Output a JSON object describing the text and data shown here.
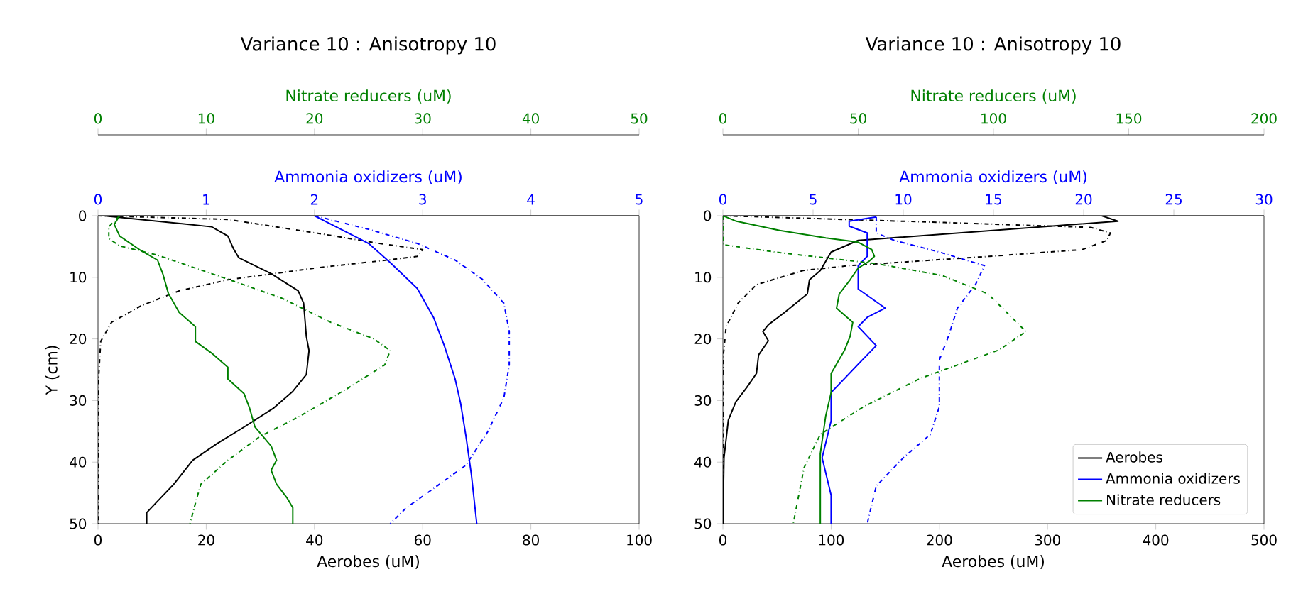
{
  "chart_data": [
    {
      "type": "line",
      "title": "Variance 10 : Anisotropy 10",
      "xlabel": "Aerobes (uM)",
      "ylabel": "Y (cm)",
      "x2label": "Ammonia oxidizers (uM)",
      "orientation": "horizontal",
      "xlim": [
        0,
        100
      ],
      "xticks": [
        0,
        20,
        40,
        60,
        80,
        100
      ],
      "x2lim": [
        0,
        5
      ],
      "x2ticks": [
        0,
        1,
        2,
        3,
        4,
        5
      ],
      "ylim": [
        50,
        0
      ],
      "yticks": [
        0,
        10,
        20,
        30,
        40,
        50
      ],
      "series": [
        {
          "color": "#000000",
          "line_style": "solid",
          "x": [
            0,
            1.8,
            3.3,
            5.3,
            6.8,
            9.4,
            12.2,
            14.2,
            19.6,
            21.9,
            25.8,
            28.5,
            31.2,
            34.3,
            37,
            39.7,
            43.6,
            45.9,
            48.2,
            50
          ],
          "values": [
            1,
            21,
            24,
            25,
            26,
            32,
            37,
            38,
            38.5,
            39,
            38.5,
            36,
            32.5,
            27,
            22,
            17.5,
            14,
            11.5,
            9,
            9
          ]
        },
        {
          "color": "#000000",
          "line_style": "dashdot",
          "x": [
            0,
            0.6,
            2.9,
            4.5,
            5.5,
            6.6,
            7.2,
            8.4,
            9.4,
            10.4,
            12.2,
            14.6,
            17.3,
            20.4,
            28.1,
            50
          ],
          "values": [
            0,
            24,
            41,
            52,
            60,
            59,
            53.5,
            41,
            32.5,
            24,
            15,
            8,
            2.5,
            0.5,
            0,
            0
          ]
        },
        {
          "color": "#0000ff",
          "line_style": "solid",
          "axis": "x2",
          "x": [
            0,
            1.8,
            4.5,
            7.6,
            11.8,
            16.5,
            21.1,
            26.5,
            30.4,
            35.8,
            42,
            50
          ],
          "values": [
            2.0,
            2.2,
            2.5,
            2.7,
            2.95,
            3.1,
            3.2,
            3.3,
            3.35,
            3.4,
            3.45,
            3.5
          ]
        },
        {
          "color": "#0000ff",
          "line_style": "dashdot",
          "axis": "x2",
          "x": [
            0,
            2.2,
            4.5,
            7.2,
            10.3,
            14.2,
            18.8,
            24.2,
            29.6,
            35.1,
            40.5,
            44.3,
            47.4,
            50
          ],
          "values": [
            2.0,
            2.5,
            2.95,
            3.3,
            3.55,
            3.75,
            3.8,
            3.8,
            3.75,
            3.6,
            3.4,
            3.1,
            2.85,
            2.7
          ]
        }
      ]
    },
    {
      "type": "line",
      "x2label": "Nitrate reducers (uM)",
      "orientation": "horizontal",
      "tick_labels": "x",
      "x2lim": [
        0,
        50
      ],
      "x2ticks": [
        0,
        10,
        20,
        30,
        40,
        50
      ],
      "ylim": [
        50,
        0
      ],
      "series": [
        {
          "color": "#008000",
          "line_style": "solid",
          "axis": "x2",
          "x": [
            0,
            1.4,
            3.3,
            5.7,
            7.2,
            9.5,
            12.6,
            15.7,
            18,
            20.4,
            22.3,
            24.6,
            26.5,
            28.9,
            31.2,
            34.3,
            37.4,
            39.7,
            41.3,
            43.6,
            45.9,
            47.4,
            50
          ],
          "values": [
            2,
            1.5,
            2,
            4,
            5.5,
            6,
            6.5,
            7.5,
            9,
            9,
            10.5,
            12,
            12,
            13.5,
            14,
            14.5,
            16,
            16.5,
            16,
            16.5,
            17.5,
            18,
            18
          ]
        },
        {
          "color": "#008000",
          "line_style": "dashdot",
          "axis": "x2",
          "x": [
            0,
            1.8,
            3.7,
            4.9,
            6.4,
            10.3,
            13.4,
            17.3,
            20,
            21.9,
            24.2,
            28.1,
            32.7,
            35.8,
            39.7,
            43.6,
            46.7,
            50
          ],
          "values": [
            2,
            1,
            1,
            2,
            5.5,
            12,
            17,
            21.5,
            25.5,
            27,
            26.5,
            23,
            18.5,
            15,
            12,
            9.5,
            9,
            8.5
          ]
        }
      ]
    },
    {
      "type": "line",
      "title": "Variance 10 : Anisotropy 10",
      "xlabel": "Aerobes (uM)",
      "x2label": "Ammonia oxidizers (uM)",
      "orientation": "horizontal",
      "legend": "bottom right",
      "xlim": [
        0,
        500
      ],
      "xticks": [
        0,
        100,
        200,
        300,
        400,
        500
      ],
      "x2lim": [
        0,
        30
      ],
      "x2ticks": [
        0,
        5,
        10,
        15,
        20,
        25,
        30
      ],
      "ylim": [
        50,
        0
      ],
      "yticks": [
        0,
        10,
        20,
        30,
        40,
        50
      ],
      "series": [
        {
          "name": "Aerobes",
          "color": "#000000",
          "line_style": "solid",
          "x": [
            0,
            0.9,
            4,
            5.9,
            7.4,
            8.9,
            10.4,
            12.7,
            15.7,
            17.7,
            18.8,
            20.3,
            22.6,
            25.6,
            27.9,
            30.2,
            33.2,
            39.3,
            50
          ],
          "values": [
            350,
            365,
            125,
            100,
            95,
            90,
            80,
            78,
            57,
            42,
            37,
            42,
            33,
            31,
            22,
            12,
            5,
            1,
            0
          ]
        },
        {
          "color": "#000000",
          "line_style": "dashdot",
          "x": [
            0,
            1.1,
            1.9,
            2.8,
            4,
            5.5,
            6.6,
            8.1,
            8.9,
            11.2,
            14.2,
            18,
            23.4,
            50
          ],
          "values": [
            0,
            205,
            340,
            358,
            355,
            332,
            246,
            117,
            74,
            31,
            14,
            3,
            0,
            0
          ]
        },
        {
          "name": "Ammonia oxidizers",
          "color": "#0000ff",
          "line_style": "solid",
          "axis": "x2",
          "x": [
            0.2,
            0.9,
            1.7,
            2.8,
            6.6,
            8.1,
            9.7,
            11.9,
            15,
            16.5,
            18,
            21.1,
            24.1,
            28.7,
            33.3,
            39.3,
            45.4,
            50
          ],
          "values": [
            8.5,
            7,
            7,
            8,
            8,
            7.5,
            7.5,
            7.5,
            9,
            8,
            7.5,
            8.5,
            7.5,
            6,
            6,
            5.5,
            6,
            6
          ]
        },
        {
          "color": "#0000ff",
          "line_style": "dashdot",
          "axis": "x2",
          "x": [
            0.2,
            2.8,
            4,
            5.9,
            8.1,
            11.2,
            15,
            19.6,
            23.4,
            27.2,
            31,
            35.5,
            39.3,
            43.9,
            50
          ],
          "values": [
            8.5,
            8.5,
            9.5,
            12,
            14.5,
            14,
            13,
            12.5,
            12,
            12,
            12,
            11.5,
            10,
            8.5,
            8
          ]
        }
      ]
    },
    {
      "type": "line",
      "x2label": "Nitrate reducers (uM)",
      "orientation": "horizontal",
      "tick_labels": "x",
      "x2lim": [
        0,
        200
      ],
      "x2ticks": [
        0,
        50,
        100,
        150,
        200
      ],
      "ylim": [
        50,
        0
      ],
      "series": [
        {
          "name": "Nitrate reducers",
          "color": "#008000",
          "line_style": "solid",
          "axis": "x2",
          "x": [
            0,
            0.9,
            2.4,
            3.6,
            4.3,
            5.5,
            6.6,
            7.4,
            8.5,
            10.4,
            12.7,
            15,
            17.3,
            19.6,
            21.8,
            25.6,
            28.7,
            32.5,
            38.6,
            50
          ],
          "values": [
            0,
            5,
            21,
            38,
            50,
            55,
            56,
            54,
            50,
            47,
            43,
            42,
            48,
            47,
            45,
            40,
            40,
            38,
            36,
            36
          ]
        },
        {
          "color": "#008000",
          "line_style": "dashdot",
          "axis": "x2",
          "x": [
            0,
            4.7,
            6,
            7.8,
            9.7,
            12.7,
            18.8,
            21.8,
            26.4,
            31,
            35.5,
            40.9,
            50
          ],
          "values": [
            0,
            0,
            21,
            57,
            81,
            98,
            112,
            102,
            73,
            52,
            36,
            30,
            26
          ]
        }
      ]
    }
  ]
}
